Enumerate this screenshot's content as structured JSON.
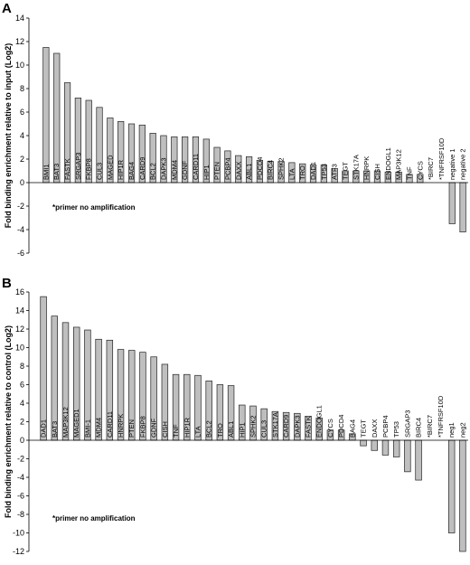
{
  "chart_data": [
    {
      "type": "bar",
      "panel": "A",
      "ylabel": "Fold binding enrichment relative to input (Log2)",
      "ylim": [
        -6,
        14
      ],
      "yticks": [
        -6,
        -4,
        -2,
        0,
        2,
        4,
        6,
        8,
        10,
        12,
        14
      ],
      "grid": false,
      "note": "*primer no amplification",
      "categories": [
        "BMI1",
        "BAT3",
        "FASTK",
        "SRGAP3",
        "FKBP8",
        "CUL3",
        "MAGED",
        "HIP1R",
        "BAG4",
        "CARD9",
        "BCL2",
        "DAPK3",
        "MDM4",
        "GDNF",
        "CARD11",
        "HIP1",
        "PTEN",
        "PCBP4",
        "DAXX",
        "ABL1",
        "PDCD4",
        "BIRC4",
        "SPHK2",
        "LTA",
        "TRO",
        "DAD1",
        "TP53",
        "ATF3",
        "TEGT",
        "STK17A",
        "HNRPK",
        "CISH",
        "ENDOGL1",
        "MAP3K12",
        "TNF",
        "CYCS",
        "*BIRC7",
        "*TNFRSF10D",
        "negative 1",
        "negative 2"
      ],
      "values": [
        11.5,
        11.0,
        8.5,
        7.2,
        7.0,
        6.4,
        5.5,
        5.2,
        5.0,
        4.9,
        4.2,
        4.0,
        3.9,
        3.9,
        3.9,
        3.7,
        3.0,
        2.7,
        2.3,
        2.2,
        1.9,
        1.8,
        1.8,
        1.7,
        1.6,
        1.5,
        1.5,
        1.2,
        1.0,
        1.0,
        1.0,
        1.0,
        0.9,
        0.9,
        0.7,
        0.7,
        0,
        0,
        -3.5,
        -4.2
      ]
    },
    {
      "type": "bar",
      "panel": "B",
      "ylabel": "Fold binding enrichment relative to control (Log2)",
      "ylim": [
        -12,
        16
      ],
      "yticks": [
        -12,
        -10,
        -8,
        -6,
        -4,
        -2,
        0,
        2,
        4,
        6,
        8,
        10,
        12,
        14,
        16
      ],
      "grid": false,
      "note": "*primer no amplification",
      "categories": [
        "DAD1",
        "BAT3",
        "MAP3K12",
        "MAGED1",
        "BMI-1",
        "MDM4",
        "CARD11",
        "HNRPK",
        "PTEN",
        "FKBP8",
        "GDNF",
        "CISH",
        "TNF",
        "HIP1R",
        "LTA",
        "BCL2",
        "TRO",
        "ABL1",
        "HIP1",
        "SPHK2",
        "CUL3",
        "STK17A",
        "CARD9",
        "DAPK3",
        "FASTK",
        "ENDOGL1",
        "CYCS",
        "PDCD4",
        "BAG4",
        "TEGT",
        "DAXX",
        "PCBP4",
        "TP53",
        "SRGAP3",
        "BIRC4",
        "*BIRC7",
        "*TNFRSF10D",
        "neg1",
        "neg2"
      ],
      "values": [
        15.5,
        13.4,
        12.7,
        12.2,
        11.9,
        10.9,
        10.8,
        9.8,
        9.7,
        9.5,
        9.0,
        8.2,
        7.1,
        7.1,
        7.0,
        6.4,
        6.0,
        5.9,
        3.8,
        3.7,
        3.4,
        3.1,
        3.0,
        2.9,
        2.6,
        2.4,
        1.1,
        1.1,
        0.7,
        -0.6,
        -1.1,
        -1.6,
        -1.8,
        -3.4,
        -4.3,
        0,
        0,
        -10.0,
        -12.0
      ]
    }
  ]
}
